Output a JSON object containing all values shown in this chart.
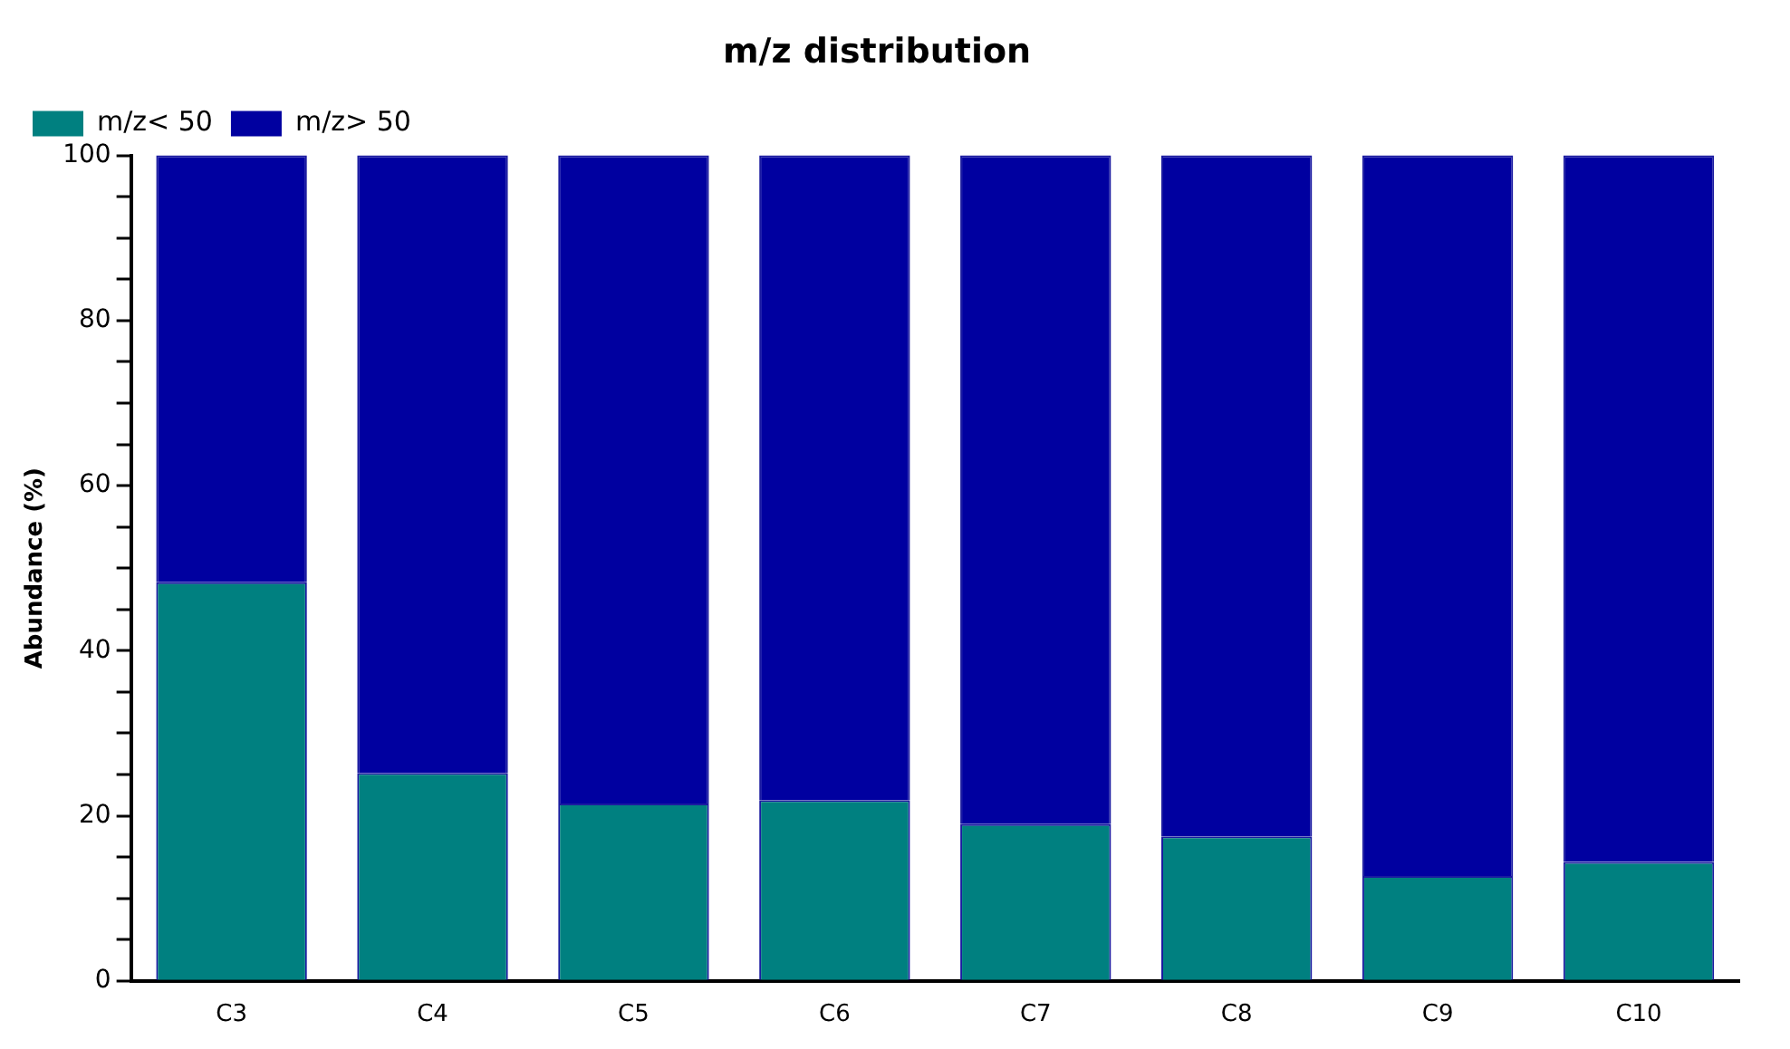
{
  "chart_data": {
    "type": "bar",
    "title": "m/z distribution",
    "ylabel": "Abundance (%)",
    "categories": [
      "C3",
      "C4",
      "C5",
      "C6",
      "C7",
      "C8",
      "C9",
      "C10"
    ],
    "stacked": true,
    "series": [
      {
        "name": "m/z< 50",
        "color": "#008080",
        "values": [
          48.3,
          25.2,
          21.5,
          21.9,
          19.0,
          17.5,
          12.7,
          14.4
        ]
      },
      {
        "name": "m/z> 50",
        "color": "#0000a0",
        "values": [
          51.7,
          74.8,
          78.5,
          78.1,
          81.0,
          82.5,
          87.3,
          85.6
        ]
      }
    ],
    "ylim": [
      0,
      100
    ],
    "yticks": [
      0,
      {
        "value": 5,
        "label": null
      },
      {
        "value": 10,
        "label": null
      },
      {
        "value": 15,
        "label": null
      },
      20,
      {
        "value": 25,
        "label": null
      },
      {
        "value": 30,
        "label": null
      },
      {
        "value": 35,
        "label": null
      },
      40,
      {
        "value": 45,
        "label": null
      },
      {
        "value": 50,
        "label": null
      },
      {
        "value": 55,
        "label": null
      },
      60,
      {
        "value": 65,
        "label": null
      },
      {
        "value": 70,
        "label": null
      },
      {
        "value": 75,
        "label": null
      },
      80,
      {
        "value": 85,
        "label": null
      },
      {
        "value": 90,
        "label": null
      },
      {
        "value": 95,
        "label": null
      },
      100
    ],
    "grid": false,
    "legend": "top left"
  }
}
